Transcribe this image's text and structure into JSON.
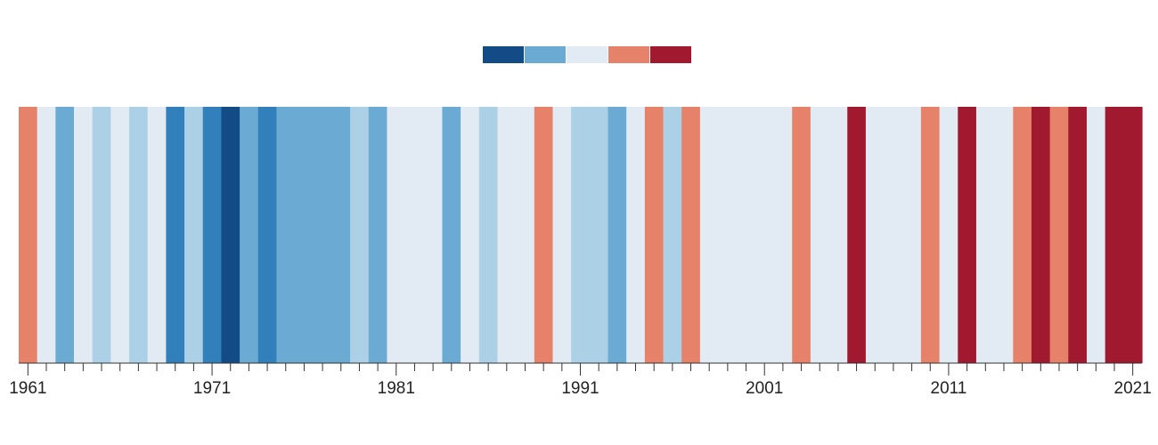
{
  "chart_data": {
    "type": "heatmap",
    "title": "",
    "xlabel": "",
    "ylabel": "",
    "x": [
      1961,
      1962,
      1963,
      1964,
      1965,
      1966,
      1967,
      1968,
      1969,
      1970,
      1971,
      1972,
      1973,
      1974,
      1975,
      1976,
      1977,
      1978,
      1979,
      1980,
      1981,
      1982,
      1983,
      1984,
      1985,
      1986,
      1987,
      1988,
      1989,
      1990,
      1991,
      1992,
      1993,
      1994,
      1995,
      1996,
      1997,
      1998,
      1999,
      2000,
      2001,
      2002,
      2003,
      2004,
      2005,
      2006,
      2007,
      2008,
      2009,
      2010,
      2011,
      2012,
      2013,
      2014,
      2015,
      2016,
      2017,
      2018,
      2019,
      2020,
      2021
    ],
    "values": [
      1,
      0,
      -1,
      0,
      -0.5,
      0,
      -0.5,
      0,
      -1.5,
      -0.5,
      -1.5,
      -2,
      -1,
      -1.5,
      -1,
      -1,
      -1,
      -1,
      -0.5,
      -1,
      0,
      0,
      0,
      -1,
      0,
      -0.5,
      0,
      0,
      1,
      0,
      -0.5,
      -0.5,
      -1,
      0,
      1,
      -0.5,
      1,
      0,
      0,
      0,
      0,
      0,
      1,
      0,
      0,
      2,
      0,
      0,
      0,
      1,
      0,
      2,
      0,
      0,
      1,
      2,
      1,
      2,
      0,
      2,
      2
    ],
    "xlim": [
      1961,
      2021
    ],
    "tick_labels": [
      "1961",
      "1971",
      "1981",
      "1991",
      "2001",
      "2011",
      "2021"
    ],
    "legend": {
      "placement": "top-center",
      "colors": [
        "#134b87",
        "#6aaad3",
        "#e2ebf3",
        "#e6826a",
        "#a1192e"
      ]
    },
    "colors": {
      "-2": "#134b87",
      "-1.5": "#3280bb",
      "-1": "#6aaad3",
      "-0.5": "#acd1e6",
      "0": "#e2ebf3",
      "0.5": "#f9dcd0",
      "1": "#e6826a",
      "2": "#a1192e"
    }
  }
}
